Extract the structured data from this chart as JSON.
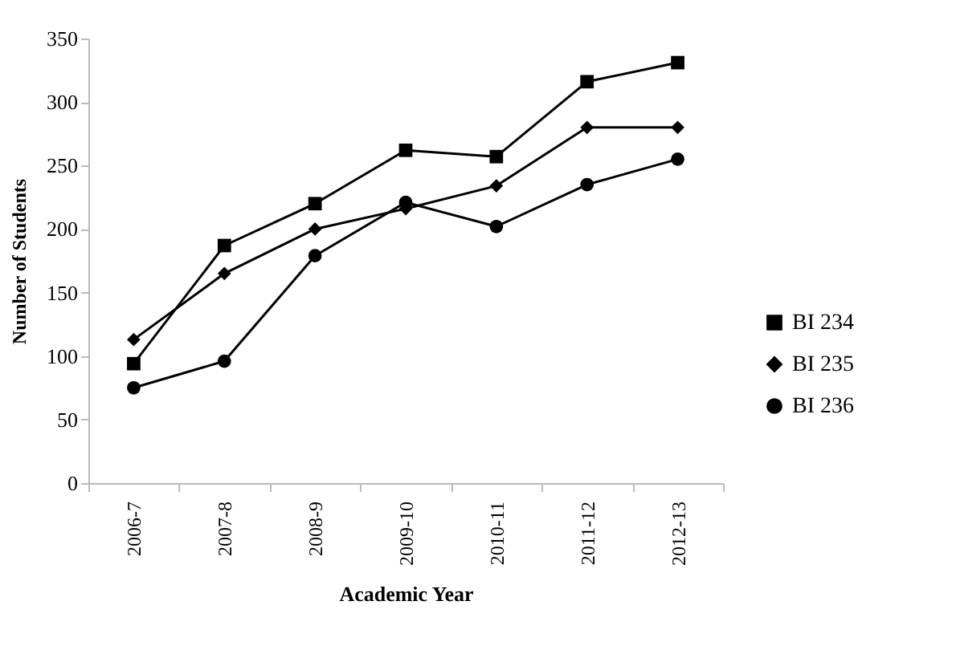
{
  "chart_data": {
    "type": "line",
    "xlabel": "Academic Year",
    "ylabel": "Number of Students",
    "categories": [
      "2006-7",
      "2007-8",
      "2008-9",
      "2009-10",
      "2010-11",
      "2011-12",
      "2012-13"
    ],
    "series": [
      {
        "name": "BI 234",
        "color": "#000000",
        "marker": "square",
        "values": [
          94,
          187,
          220,
          262,
          257,
          316,
          331
        ]
      },
      {
        "name": "BI 235",
        "color": "#000000",
        "marker": "diamond",
        "values": [
          113,
          165,
          200,
          216,
          234,
          280,
          280
        ]
      },
      {
        "name": "BI 236",
        "color": "#000000",
        "marker": "circle",
        "values": [
          75,
          96,
          179,
          221,
          202,
          235,
          255
        ]
      }
    ],
    "ylim": [
      0,
      350
    ],
    "yticks": [
      0,
      50,
      100,
      150,
      200,
      250,
      300,
      350
    ],
    "grid": false,
    "legend": "right",
    "line_style": "solid"
  }
}
